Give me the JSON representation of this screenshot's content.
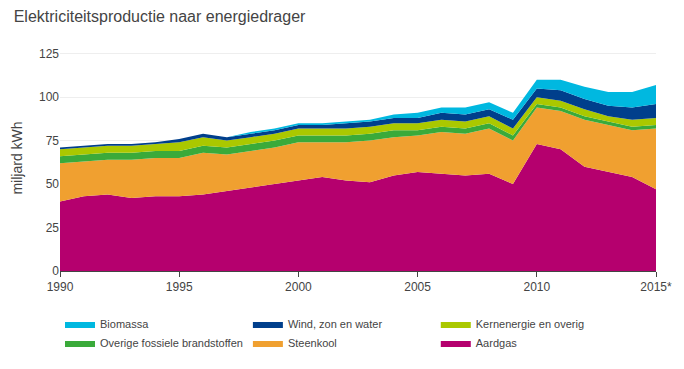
{
  "chart_data": {
    "type": "area",
    "stacked": true,
    "title": "Elektriciteitsproductie naar energiedrager",
    "ylabel": "miljard kWh",
    "x": [
      1990,
      1991,
      1992,
      1993,
      1994,
      1995,
      1996,
      1997,
      1998,
      1999,
      2000,
      2001,
      2002,
      2003,
      2004,
      2005,
      2006,
      2007,
      2008,
      2009,
      2010,
      2011,
      2012,
      2013,
      2014,
      2015
    ],
    "series": [
      {
        "name": "Aardgas",
        "color": "#b5006e",
        "values": [
          40,
          43,
          44,
          42,
          43,
          43,
          44,
          46,
          48,
          50,
          52,
          54,
          52,
          51,
          55,
          57,
          56,
          55,
          56,
          50,
          73,
          70,
          60,
          57,
          54,
          47
        ]
      },
      {
        "name": "Steenkool",
        "color": "#f0a030",
        "values": [
          22,
          20,
          20,
          22,
          22,
          22,
          24,
          21,
          21,
          21,
          22,
          20,
          22,
          24,
          22,
          21,
          24,
          24,
          26,
          25,
          21,
          22,
          27,
          27,
          27,
          35
        ]
      },
      {
        "name": "Overige fossiele brandstoffen",
        "color": "#3aaa3a",
        "values": [
          4,
          4,
          4,
          4,
          4,
          4,
          4,
          4,
          4,
          4,
          4,
          4,
          4,
          4,
          4,
          3,
          3,
          3,
          3,
          3,
          2,
          2,
          2,
          2,
          2,
          2
        ]
      },
      {
        "name": "Kernenergie en overig",
        "color": "#aac800",
        "values": [
          4,
          4,
          4,
          4,
          4,
          5,
          5,
          4,
          4,
          4,
          4,
          4,
          4,
          4,
          4,
          4,
          4,
          4,
          4,
          4,
          4,
          4,
          4,
          3,
          4,
          4
        ]
      },
      {
        "name": "Wind, zon en water",
        "color": "#003f8c",
        "values": [
          1,
          1,
          1,
          1,
          1,
          2,
          2,
          2,
          2,
          2,
          2,
          2,
          3,
          3,
          3,
          3,
          4,
          4,
          4,
          5,
          5,
          6,
          6,
          6,
          7,
          8
        ]
      },
      {
        "name": "Biomassa",
        "color": "#00b8e0",
        "values": [
          0,
          0,
          0,
          0,
          0,
          0,
          0,
          0,
          1,
          1,
          1,
          1,
          1,
          1,
          2,
          3,
          3,
          4,
          4,
          4,
          5,
          6,
          7,
          8,
          9,
          11
        ]
      }
    ],
    "xlim": [
      1990,
      2015
    ],
    "xticks": [
      1990,
      1995,
      2000,
      2005,
      2010,
      {
        "value": 2015,
        "label": "2015*"
      }
    ],
    "ylim": [
      0,
      130
    ],
    "yticks": [
      0,
      25,
      50,
      75,
      100,
      125
    ],
    "grid": "y",
    "legend": "bottom"
  }
}
